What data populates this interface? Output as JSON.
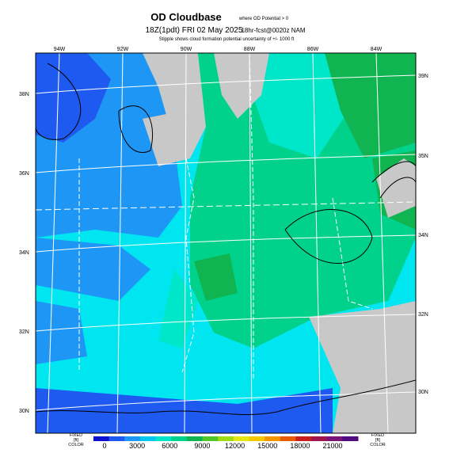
{
  "header": {
    "title": "OD Cloudbase",
    "title_note": "where OD Potential > 0",
    "valid_time": "18Z(1pdt) FRI 02 May 2025",
    "forecast": "18hr-fcst@0020z NAM",
    "subtitle": "Stipple shows cloud formation potential uncertainty of +/- 1000 ft"
  },
  "map": {
    "top_labels": [
      "94W",
      "92W",
      "90W",
      "88W",
      "86W",
      "84W"
    ],
    "left_labels": [
      "38N",
      "36N",
      "34N",
      "32N",
      "30N"
    ],
    "right_labels": [
      "39N",
      "35N",
      "34N",
      "32N",
      "30N"
    ]
  },
  "colorbar": {
    "ticks": [
      0,
      3000,
      6000,
      9000,
      12000,
      15000,
      18000,
      21000
    ],
    "colors": [
      "#1010d0",
      "#1e5af0",
      "#1e96f5",
      "#00c8f0",
      "#00e6c8",
      "#00d28c",
      "#10b450",
      "#50c828",
      "#a0dc14",
      "#e6e614",
      "#f5c800",
      "#f59600",
      "#e65a00",
      "#c81e1e",
      "#a01450",
      "#781478",
      "#500a82"
    ],
    "left_note": [
      "FIXED",
      "[ft]",
      "COLOR"
    ],
    "right_note": [
      "FIXED",
      "[ft]",
      "COLOR"
    ]
  }
}
